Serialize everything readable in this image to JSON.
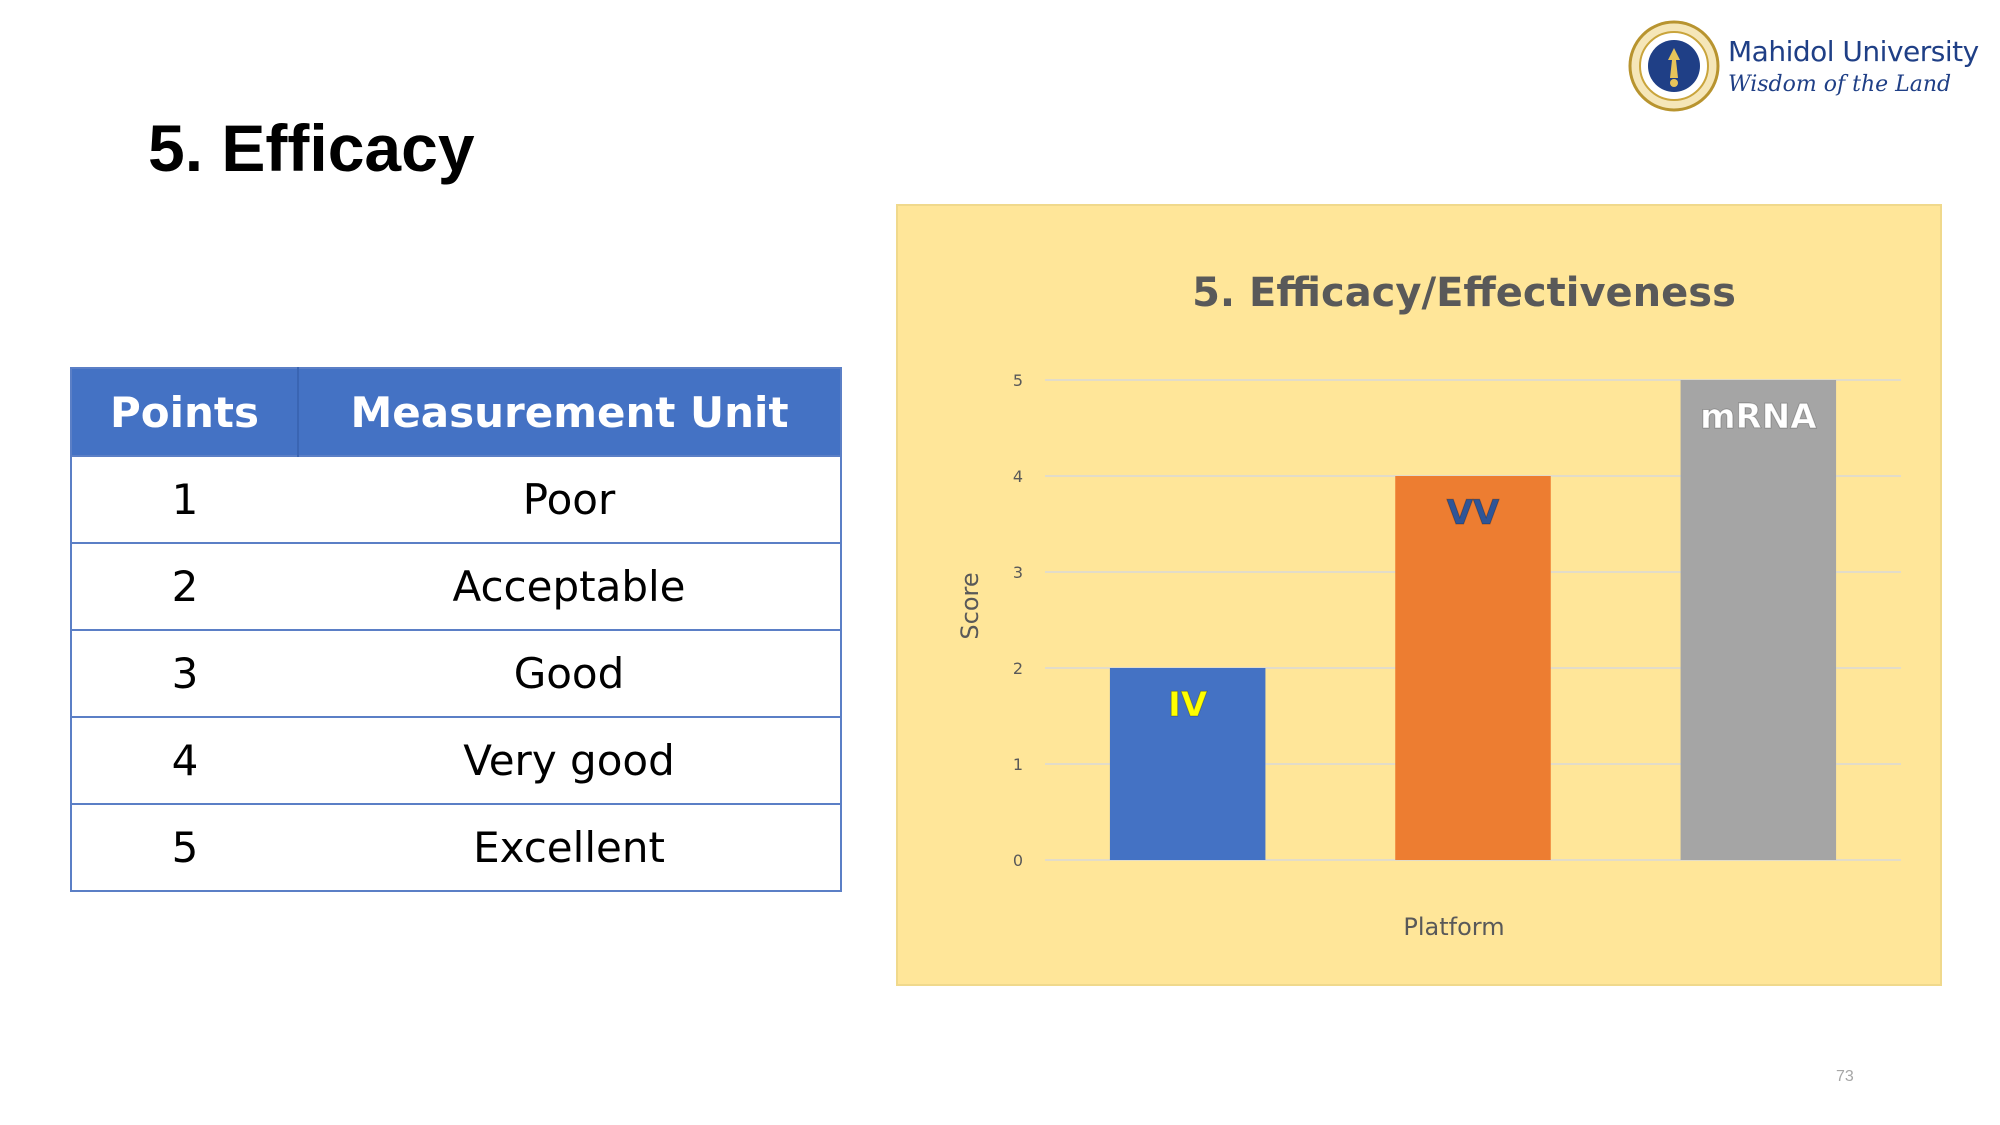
{
  "header": {
    "title": "5. Efficacy",
    "logo": {
      "name": "Mahidol University",
      "motto": "Wisdom of the Land",
      "seal_icon": "university-seal-icon"
    }
  },
  "table": {
    "headers": [
      "Points",
      "Measurement Unit"
    ],
    "rows": [
      [
        "1",
        "Poor"
      ],
      [
        "2",
        "Acceptable"
      ],
      [
        "3",
        "Good"
      ],
      [
        "4",
        "Very good"
      ],
      [
        "5",
        "Excellent"
      ]
    ]
  },
  "chart_data": {
    "type": "bar",
    "title": "5. Efficacy/Effectiveness",
    "xlabel": "Platform",
    "ylabel": "Score",
    "ylim": [
      0,
      5
    ],
    "yticks": [
      "0",
      "1",
      "2",
      "3",
      "4",
      "5"
    ],
    "grid": true,
    "categories": [
      "IV",
      "VV",
      "mRNA"
    ],
    "values": [
      2,
      4,
      5
    ],
    "colors": [
      "#4472c4",
      "#ed7d31",
      "#a5a5a5"
    ],
    "label_colors": [
      "#ffff00",
      "#2f5597",
      "#ffffff"
    ],
    "background": "#ffe699"
  },
  "footer": {
    "page_number": "73"
  }
}
